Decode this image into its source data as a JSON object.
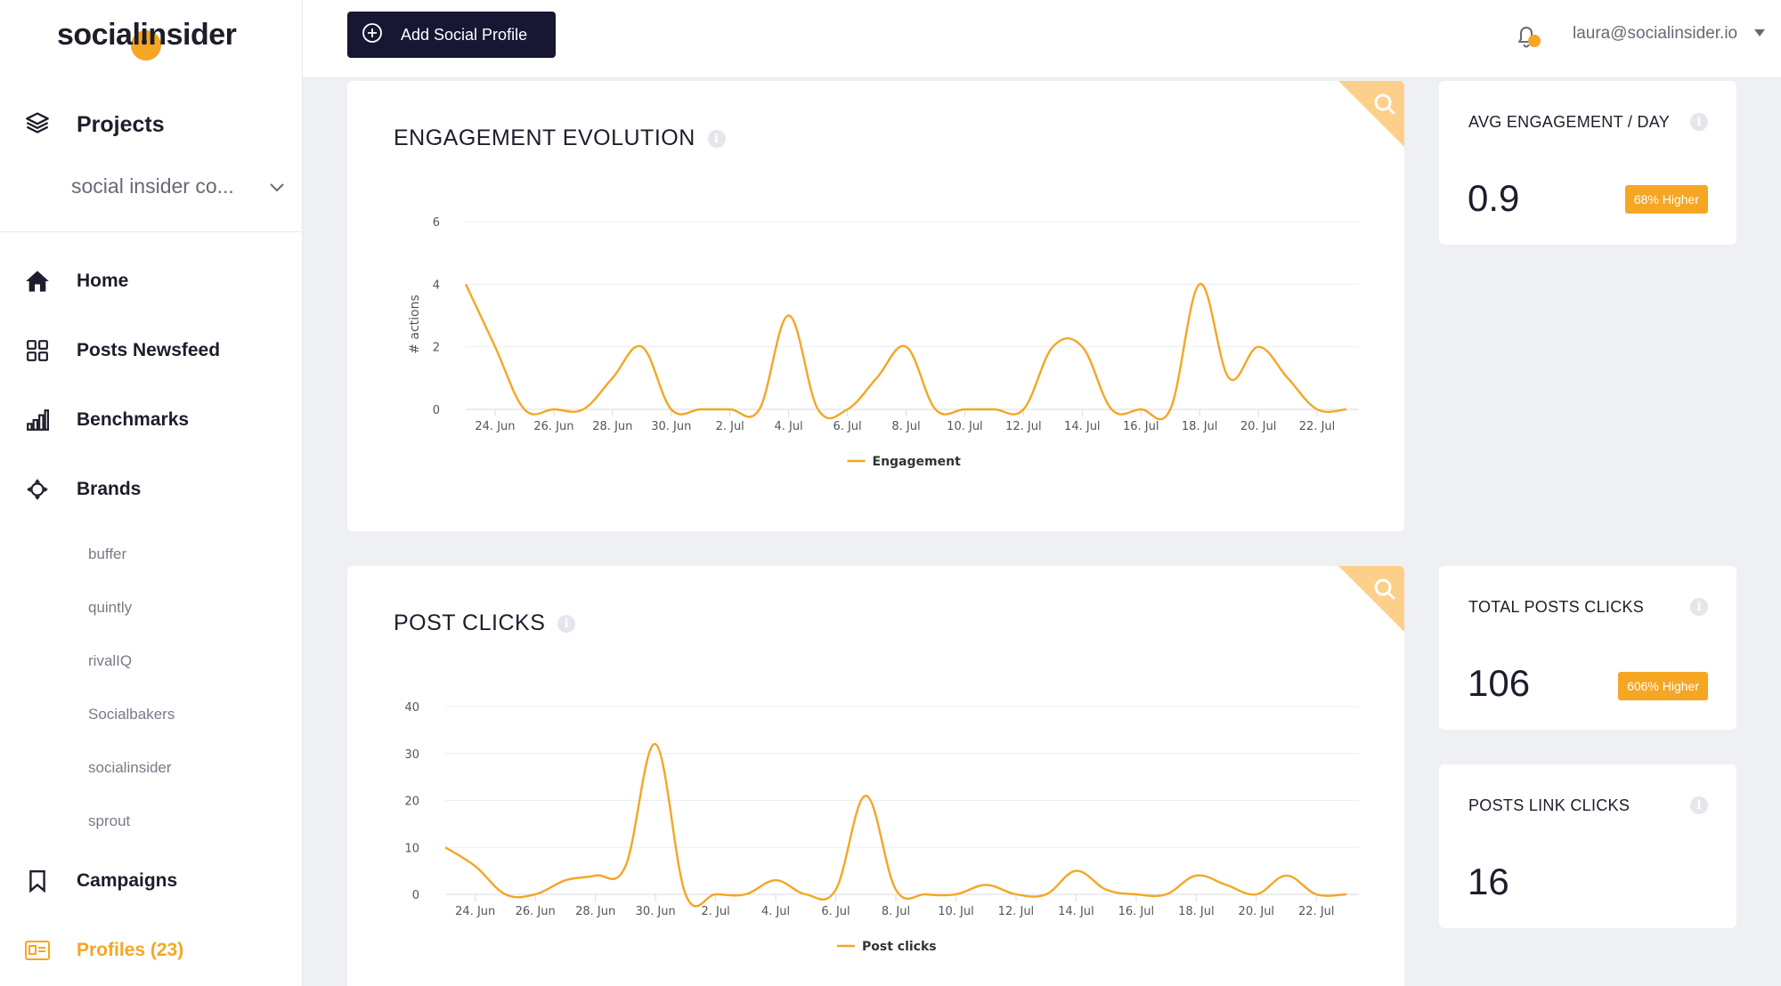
{
  "app": {
    "logo_left": "social",
    "logo_right": "insider"
  },
  "sidebar": {
    "projects_label": "Projects",
    "project_selected": "social insider co...",
    "nav": [
      {
        "label": "Home",
        "icon": "home-icon"
      },
      {
        "label": "Posts Newsfeed",
        "icon": "grid-icon"
      },
      {
        "label": "Benchmarks",
        "icon": "bar-chart-icon"
      },
      {
        "label": "Brands",
        "icon": "brands-icon"
      },
      {
        "label": "Campaigns",
        "icon": "bookmark-icon"
      },
      {
        "label": "Profiles (23)",
        "icon": "id-card-icon"
      }
    ],
    "brands": [
      "buffer",
      "quintly",
      "rivalIQ",
      "Socialbakers",
      "socialinsider",
      "sprout"
    ]
  },
  "topbar": {
    "add_button_label": "Add Social Profile",
    "user_email": "laura@socialinsider.io"
  },
  "colors": {
    "accent": "#f5a623",
    "dark": "#171733",
    "background": "#eef0f4"
  },
  "engagement_card": {
    "title": "ENGAGEMENT EVOLUTION"
  },
  "post_clicks_card": {
    "title": "POST CLICKS"
  },
  "stats": {
    "avg_engagement": {
      "title": "AVG ENGAGEMENT / DAY",
      "value": "0.9",
      "badge": "68% Higher"
    },
    "total_posts_clicks": {
      "title": "TOTAL POSTS CLICKS",
      "value": "106",
      "badge": "606% Higher"
    },
    "posts_link_clicks": {
      "title": "POSTS LINK CLICKS",
      "value": "16"
    }
  },
  "chart_data": [
    {
      "type": "line",
      "title": "ENGAGEMENT EVOLUTION",
      "ylabel": "# actions",
      "xlabel": "",
      "ylim": [
        0,
        6
      ],
      "yticks": [
        0,
        2,
        4,
        6
      ],
      "xticks": [
        "24. Jun",
        "26. Jun",
        "28. Jun",
        "30. Jun",
        "2. Jul",
        "4. Jul",
        "6. Jul",
        "8. Jul",
        "10. Jul",
        "12. Jul",
        "14. Jul",
        "16. Jul",
        "18. Jul",
        "20. Jul",
        "22. Jul"
      ],
      "x": [
        "23. Jun",
        "24. Jun",
        "25. Jun",
        "26. Jun",
        "27. Jun",
        "28. Jun",
        "29. Jun",
        "30. Jun",
        "1. Jul",
        "2. Jul",
        "3. Jul",
        "4. Jul",
        "5. Jul",
        "6. Jul",
        "7. Jul",
        "8. Jul",
        "9. Jul",
        "10. Jul",
        "11. Jul",
        "12. Jul",
        "13. Jul",
        "14. Jul",
        "15. Jul",
        "16. Jul",
        "17. Jul",
        "18. Jul",
        "19. Jul",
        "20. Jul",
        "21. Jul",
        "22. Jul",
        "23. Jul"
      ],
      "series": [
        {
          "name": "Engagement",
          "values": [
            4,
            2,
            0,
            0,
            0,
            1,
            2,
            0,
            0,
            0,
            0,
            3,
            0,
            0,
            1,
            2,
            0,
            0,
            0,
            0,
            2,
            2,
            0,
            0,
            0,
            4,
            1,
            2,
            1,
            0,
            0
          ]
        }
      ],
      "legend": "bottom-center",
      "grid": true
    },
    {
      "type": "line",
      "title": "POST CLICKS",
      "xlabel": "",
      "ylabel": "",
      "ylim": [
        0,
        40
      ],
      "yticks": [
        0,
        10,
        20,
        30,
        40
      ],
      "xticks": [
        "24. Jun",
        "26. Jun",
        "28. Jun",
        "30. Jun",
        "2. Jul",
        "4. Jul",
        "6. Jul",
        "8. Jul",
        "10. Jul",
        "12. Jul",
        "14. Jul",
        "16. Jul",
        "18. Jul",
        "20. Jul",
        "22. Jul"
      ],
      "x": [
        "23. Jun",
        "24. Jun",
        "25. Jun",
        "26. Jun",
        "27. Jun",
        "28. Jun",
        "29. Jun",
        "30. Jun",
        "1. Jul",
        "2. Jul",
        "3. Jul",
        "4. Jul",
        "5. Jul",
        "6. Jul",
        "7. Jul",
        "8. Jul",
        "9. Jul",
        "10. Jul",
        "11. Jul",
        "12. Jul",
        "13. Jul",
        "14. Jul",
        "15. Jul",
        "16. Jul",
        "17. Jul",
        "18. Jul",
        "19. Jul",
        "20. Jul",
        "21. Jul",
        "22. Jul",
        "23. Jul"
      ],
      "series": [
        {
          "name": "Post clicks",
          "values": [
            10,
            6,
            0,
            0,
            3,
            4,
            6,
            32,
            0,
            0,
            0,
            3,
            0,
            1,
            21,
            1,
            0,
            0,
            2,
            0,
            0,
            5,
            1,
            0,
            0,
            4,
            2,
            0,
            4,
            0,
            0
          ]
        }
      ],
      "legend": "bottom-center",
      "grid": true
    }
  ]
}
